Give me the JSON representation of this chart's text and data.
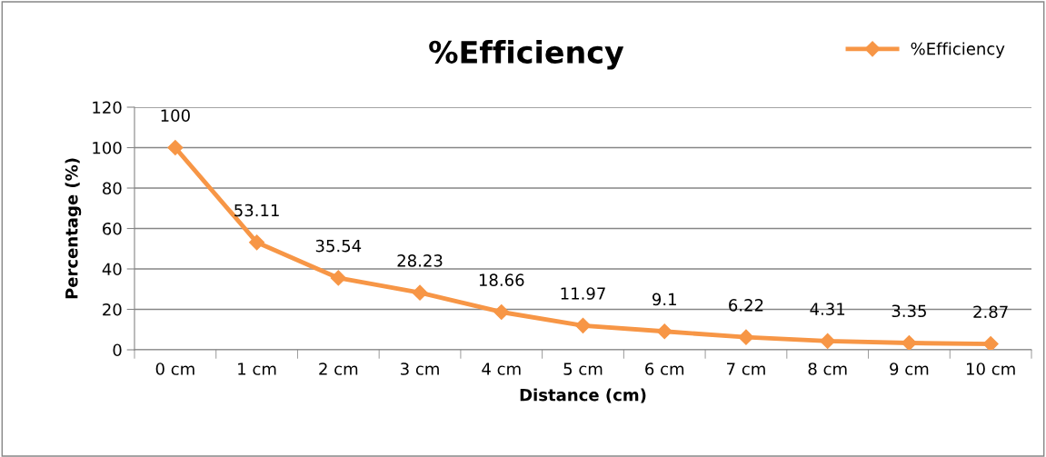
{
  "chart_data": {
    "type": "line",
    "title": "%Efficiency",
    "xlabel": "Distance (cm)",
    "ylabel": "Percentage (%)",
    "categories": [
      "0 cm",
      "1 cm",
      "2 cm",
      "3 cm",
      "4 cm",
      "5 cm",
      "6 cm",
      "7 cm",
      "8 cm",
      "9 cm",
      "10 cm"
    ],
    "series": [
      {
        "name": "%Efficiency",
        "color": "#f79646",
        "values": [
          100,
          53.11,
          35.54,
          28.23,
          18.66,
          11.97,
          9.1,
          6.22,
          4.31,
          3.35,
          2.87
        ]
      }
    ],
    "ylim": [
      0,
      120
    ],
    "yticks": [
      0,
      20,
      40,
      60,
      80,
      100,
      120
    ],
    "grid": "y",
    "legend": "top right",
    "marker": "diamond",
    "line_style": "solid",
    "data_labels": true
  }
}
